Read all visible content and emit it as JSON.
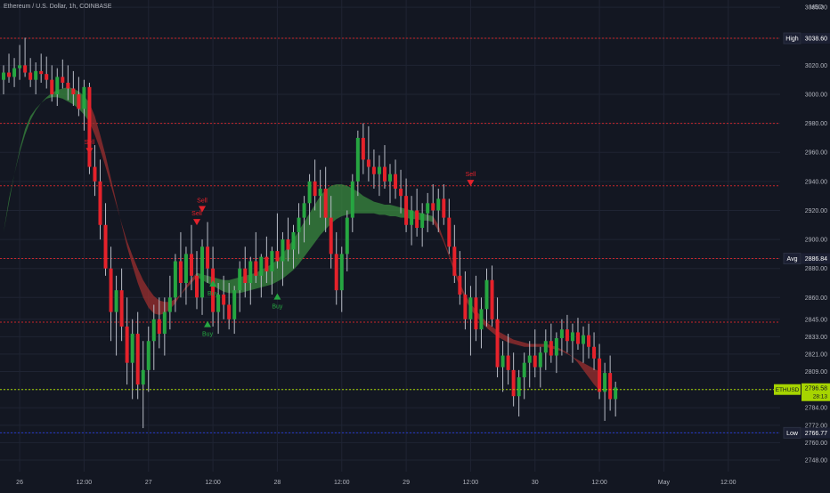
{
  "header": {
    "symbol": "Ethereum / U.S. Dollar, 1h, COINBASE",
    "currency": "USD"
  },
  "colors": {
    "background": "#131722",
    "grid": "#1f2433",
    "axis_text": "#b2b5be",
    "up": "#26a641",
    "down": "#e5222b",
    "band_up": "#3a8a3f",
    "band_down": "#9c2f2f",
    "level_red": "#c9262b",
    "level_blue": "#2637c9",
    "current": "#a6d400"
  },
  "chart_data": {
    "type": "candlestick",
    "title": "Ethereum / U.S. Dollar, 1h, COINBASE",
    "ylim": [
      2740,
      3065
    ],
    "y_ticks": [
      3060,
      3038.6,
      3020,
      3000,
      2980,
      2960,
      2940,
      2920,
      2900,
      2886.84,
      2880,
      2860,
      2845,
      2833,
      2821,
      2809,
      2796.58,
      2784,
      2772,
      2766.77,
      2760,
      2748
    ],
    "y_tick_labels": [
      "3060.00",
      "3038.60",
      "3020.00",
      "3000.00",
      "2980.00",
      "2960.00",
      "2940.00",
      "2920.00",
      "2900.00",
      "2886.84",
      "2880.00",
      "2860.00",
      "2845.00",
      "2833.00",
      "2821.00",
      "2809.00",
      "2796.58",
      "2784.00",
      "2772.00",
      "2766.77",
      "2760.00",
      "2748.00"
    ],
    "x_ticks": [
      {
        "label": "26",
        "bar": 3
      },
      {
        "label": "12:00",
        "bar": 15
      },
      {
        "label": "27",
        "bar": 27
      },
      {
        "label": "12:00",
        "bar": 39
      },
      {
        "label": "28",
        "bar": 51
      },
      {
        "label": "12:00",
        "bar": 63
      },
      {
        "label": "29",
        "bar": 75
      },
      {
        "label": "12:00",
        "bar": 87
      },
      {
        "label": "30",
        "bar": 99
      },
      {
        "label": "12:00",
        "bar": 111
      },
      {
        "label": "May",
        "bar": 123
      },
      {
        "label": "12:00",
        "bar": 135
      }
    ],
    "x_range": [
      0,
      144
    ],
    "candles": [
      [
        3010,
        3020,
        3000,
        3015
      ],
      [
        3015,
        3028,
        3008,
        3012
      ],
      [
        3012,
        3025,
        3005,
        3018
      ],
      [
        3018,
        3034,
        3010,
        3020
      ],
      [
        3020,
        3039,
        3012,
        3015
      ],
      [
        3015,
        3025,
        3005,
        3010
      ],
      [
        3010,
        3022,
        3000,
        3016
      ],
      [
        3016,
        3028,
        3008,
        3014
      ],
      [
        3014,
        3026,
        3004,
        3010
      ],
      [
        3010,
        3020,
        2995,
        3000
      ],
      [
        3000,
        3018,
        2992,
        3012
      ],
      [
        3012,
        3024,
        3004,
        3008
      ],
      [
        3008,
        3020,
        2996,
        3004
      ],
      [
        3004,
        3016,
        2992,
        3000
      ],
      [
        3000,
        3012,
        2985,
        2990
      ],
      [
        2990,
        3010,
        2975,
        3005
      ],
      [
        3005,
        3008,
        2945,
        2950
      ],
      [
        2950,
        2965,
        2930,
        2940
      ],
      [
        2940,
        2955,
        2900,
        2910
      ],
      [
        2910,
        2925,
        2875,
        2880
      ],
      [
        2880,
        2895,
        2830,
        2850
      ],
      [
        2850,
        2875,
        2820,
        2865
      ],
      [
        2865,
        2880,
        2830,
        2840
      ],
      [
        2840,
        2860,
        2800,
        2815
      ],
      [
        2815,
        2845,
        2790,
        2835
      ],
      [
        2835,
        2850,
        2790,
        2800
      ],
      [
        2800,
        2830,
        2770,
        2810
      ],
      [
        2810,
        2840,
        2795,
        2830
      ],
      [
        2830,
        2855,
        2810,
        2845
      ],
      [
        2845,
        2860,
        2825,
        2835
      ],
      [
        2835,
        2860,
        2820,
        2850
      ],
      [
        2850,
        2875,
        2838,
        2860
      ],
      [
        2860,
        2890,
        2850,
        2885
      ],
      [
        2885,
        2905,
        2860,
        2870
      ],
      [
        2870,
        2895,
        2855,
        2890
      ],
      [
        2890,
        2910,
        2865,
        2875
      ],
      [
        2875,
        2892,
        2852,
        2860
      ],
      [
        2860,
        2900,
        2848,
        2895
      ],
      [
        2895,
        2912,
        2870,
        2880
      ],
      [
        2880,
        2895,
        2840,
        2850
      ],
      [
        2850,
        2870,
        2835,
        2862
      ],
      [
        2862,
        2875,
        2845,
        2855
      ],
      [
        2855,
        2870,
        2838,
        2845
      ],
      [
        2845,
        2868,
        2835,
        2865
      ],
      [
        2865,
        2885,
        2850,
        2880
      ],
      [
        2880,
        2895,
        2860,
        2870
      ],
      [
        2870,
        2888,
        2855,
        2885
      ],
      [
        2885,
        2905,
        2870,
        2875
      ],
      [
        2875,
        2890,
        2860,
        2888
      ],
      [
        2888,
        2902,
        2870,
        2878
      ],
      [
        2878,
        2895,
        2862,
        2892
      ],
      [
        2892,
        2918,
        2880,
        2885
      ],
      [
        2885,
        2905,
        2868,
        2900
      ],
      [
        2900,
        2915,
        2885,
        2893
      ],
      [
        2893,
        2910,
        2880,
        2905
      ],
      [
        2905,
        2925,
        2890,
        2915
      ],
      [
        2915,
        2930,
        2898,
        2925
      ],
      [
        2925,
        2945,
        2910,
        2940
      ],
      [
        2940,
        2955,
        2920,
        2930
      ],
      [
        2930,
        2948,
        2915,
        2935
      ],
      [
        2935,
        2950,
        2905,
        2915
      ],
      [
        2915,
        2930,
        2880,
        2890
      ],
      [
        2890,
        2905,
        2855,
        2865
      ],
      [
        2865,
        2895,
        2850,
        2890
      ],
      [
        2890,
        2920,
        2878,
        2915
      ],
      [
        2915,
        2945,
        2905,
        2940
      ],
      [
        2940,
        2975,
        2930,
        2970
      ],
      [
        2970,
        2980,
        2945,
        2955
      ],
      [
        2955,
        2978,
        2940,
        2950
      ],
      [
        2950,
        2962,
        2935,
        2945
      ],
      [
        2945,
        2958,
        2930,
        2950
      ],
      [
        2950,
        2965,
        2935,
        2940
      ],
      [
        2940,
        2952,
        2925,
        2945
      ],
      [
        2945,
        2955,
        2928,
        2935
      ],
      [
        2935,
        2948,
        2918,
        2930
      ],
      [
        2930,
        2942,
        2905,
        2910
      ],
      [
        2910,
        2930,
        2896,
        2920
      ],
      [
        2920,
        2935,
        2902,
        2908
      ],
      [
        2908,
        2925,
        2895,
        2918
      ],
      [
        2918,
        2932,
        2905,
        2925
      ],
      [
        2925,
        2938,
        2910,
        2920
      ],
      [
        2920,
        2935,
        2905,
        2928
      ],
      [
        2928,
        2938,
        2910,
        2915
      ],
      [
        2915,
        2928,
        2890,
        2895
      ],
      [
        2895,
        2910,
        2870,
        2875
      ],
      [
        2875,
        2892,
        2855,
        2862
      ],
      [
        2862,
        2878,
        2838,
        2845
      ],
      [
        2845,
        2868,
        2820,
        2860
      ],
      [
        2860,
        2875,
        2830,
        2838
      ],
      [
        2838,
        2860,
        2825,
        2852
      ],
      [
        2852,
        2880,
        2840,
        2872
      ],
      [
        2872,
        2882,
        2840,
        2845
      ],
      [
        2845,
        2860,
        2805,
        2812
      ],
      [
        2812,
        2830,
        2795,
        2820
      ],
      [
        2820,
        2835,
        2800,
        2810
      ],
      [
        2810,
        2822,
        2785,
        2792
      ],
      [
        2792,
        2810,
        2778,
        2805
      ],
      [
        2805,
        2822,
        2790,
        2815
      ],
      [
        2815,
        2830,
        2798,
        2820
      ],
      [
        2820,
        2838,
        2805,
        2812
      ],
      [
        2812,
        2826,
        2798,
        2822
      ],
      [
        2822,
        2838,
        2810,
        2830
      ],
      [
        2830,
        2842,
        2815,
        2820
      ],
      [
        2820,
        2836,
        2808,
        2832
      ],
      [
        2832,
        2845,
        2820,
        2838
      ],
      [
        2838,
        2848,
        2822,
        2830
      ],
      [
        2830,
        2842,
        2815,
        2836
      ],
      [
        2836,
        2846,
        2824,
        2828
      ],
      [
        2828,
        2840,
        2815,
        2834
      ],
      [
        2834,
        2842,
        2818,
        2826
      ],
      [
        2826,
        2836,
        2810,
        2818
      ],
      [
        2818,
        2828,
        2790,
        2795
      ],
      [
        2795,
        2815,
        2775,
        2808
      ],
      [
        2808,
        2820,
        2782,
        2790
      ],
      [
        2790,
        2802,
        2778,
        2798
      ]
    ],
    "bands": [
      {
        "kind": "bull",
        "start": 0,
        "fast": [
          2905,
          2928,
          2945,
          2960,
          2972,
          2982,
          2989,
          2994,
          2998,
          3001,
          3003,
          3004,
          3005,
          3004,
          3002,
          2999,
          2994
        ],
        "slow": [
          2905,
          2925,
          2945,
          2962,
          2976,
          2985,
          2990,
          2994,
          2997,
          2998,
          2998,
          2997,
          2995,
          2993,
          2990,
          2986,
          2981
        ]
      },
      {
        "kind": "bear",
        "start": 16,
        "fast": [
          2994,
          2985,
          2972,
          2958,
          2942,
          2926,
          2910,
          2895,
          2882,
          2870,
          2860,
          2853,
          2849,
          2848,
          2849,
          2852,
          2856,
          2862,
          2868,
          2873,
          2877
        ],
        "slow": [
          2981,
          2972,
          2962,
          2950,
          2937,
          2924,
          2911,
          2899,
          2889,
          2880,
          2872,
          2866,
          2861,
          2858,
          2857,
          2857,
          2859,
          2862,
          2866,
          2870,
          2874
        ]
      },
      {
        "kind": "bull",
        "start": 36,
        "fast": [
          2877,
          2876,
          2875,
          2874,
          2873,
          2872,
          2872,
          2873,
          2874,
          2875,
          2876,
          2877,
          2879,
          2881,
          2883,
          2886,
          2890,
          2895,
          2900,
          2906,
          2912,
          2918,
          2924,
          2930,
          2934,
          2937,
          2938,
          2938,
          2937,
          2935,
          2933,
          2930,
          2928,
          2926,
          2925,
          2924,
          2924,
          2923,
          2922,
          2921,
          2920,
          2919,
          2918,
          2917,
          2916
        ],
        "slow": [
          2874,
          2872,
          2870,
          2868,
          2866,
          2864,
          2863,
          2863,
          2863,
          2864,
          2865,
          2866,
          2867,
          2868,
          2869,
          2871,
          2873,
          2876,
          2879,
          2883,
          2888,
          2893,
          2898,
          2903,
          2907,
          2911,
          2914,
          2916,
          2917,
          2918,
          2918,
          2918,
          2918,
          2918,
          2917,
          2917,
          2916,
          2916,
          2915,
          2915,
          2914,
          2914,
          2913,
          2913,
          2912
        ]
      },
      {
        "kind": "bear",
        "start": 80,
        "fast": [
          2916,
          2910,
          2900,
          2890,
          2880,
          2870,
          2862,
          2856,
          2851,
          2847,
          2843,
          2840,
          2837,
          2835,
          2833,
          2831,
          2830,
          2829,
          2828,
          2828,
          2828,
          2828,
          2827,
          2826,
          2824,
          2822,
          2819,
          2815,
          2810,
          2805,
          2800,
          2796
        ],
        "slow": [
          2912,
          2906,
          2898,
          2888,
          2877,
          2867,
          2859,
          2852,
          2847,
          2843,
          2839,
          2836,
          2833,
          2831,
          2829,
          2828,
          2827,
          2826,
          2826,
          2826,
          2826,
          2826,
          2825,
          2824,
          2823,
          2821,
          2819,
          2817,
          2815,
          2813,
          2811,
          2809
        ]
      }
    ],
    "signals": [
      {
        "type": "sell",
        "label": "Sell",
        "bar": 16,
        "price": 2960
      },
      {
        "type": "sell",
        "label": "Sell",
        "bar": 36,
        "price": 2911
      },
      {
        "type": "sell",
        "label": "Sell",
        "bar": 37,
        "price": 2920
      },
      {
        "type": "buy",
        "label": "Buy",
        "bar": 38,
        "price": 2842
      },
      {
        "type": "buy",
        "label": "Buy",
        "bar": 39,
        "price": 2870
      },
      {
        "type": "buy",
        "label": "Buy",
        "bar": 51,
        "price": 2861
      },
      {
        "type": "sell",
        "label": "Sell",
        "bar": 87,
        "price": 2938
      }
    ],
    "levels": [
      {
        "label": "High",
        "price": 3038.6,
        "value_label": "3038.60",
        "color": "#c9262b"
      },
      {
        "label": "",
        "price": 2980,
        "value_label": "",
        "color": "#c9262b"
      },
      {
        "label": "",
        "price": 2937,
        "value_label": "",
        "color": "#c9262b"
      },
      {
        "label": "Avg",
        "price": 2886.84,
        "value_label": "2886.84",
        "color": "#c9262b"
      },
      {
        "label": "",
        "price": 2843,
        "value_label": "",
        "color": "#c9262b"
      },
      {
        "label": "Low",
        "price": 2766.77,
        "value_label": "2766.77",
        "color": "#2637c9"
      }
    ],
    "current_price": {
      "symbol": "ETHUSD",
      "value_label": "2796.58",
      "countdown": "28:13",
      "price": 2796.58
    }
  }
}
